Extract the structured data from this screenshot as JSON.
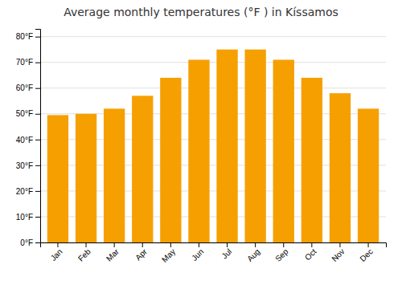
{
  "chart_data": {
    "type": "bar",
    "title": "Average monthly temperatures (°F ) in Kíssamos",
    "categories": [
      "Jan",
      "Feb",
      "Mar",
      "Apr",
      "May",
      "Jun",
      "Jul",
      "Aug",
      "Sep",
      "Oct",
      "Nov",
      "Dec"
    ],
    "values": [
      49.5,
      50,
      52,
      57,
      64,
      71,
      75,
      75,
      71,
      64,
      58,
      52
    ],
    "color": "#F5A000",
    "ylim": [
      0,
      83
    ],
    "yticks": [
      {
        "value": 0,
        "label": "0°F"
      },
      {
        "value": 10,
        "label": "10°F"
      },
      {
        "value": 20,
        "label": "20°F"
      },
      {
        "value": 30,
        "label": "30°F"
      },
      {
        "value": 40,
        "label": "40°F"
      },
      {
        "value": 50,
        "label": "50°F"
      },
      {
        "value": 60,
        "label": "60°F"
      },
      {
        "value": 70,
        "label": "70°F"
      },
      {
        "value": 80,
        "label": "80°F"
      }
    ],
    "grid": true
  }
}
